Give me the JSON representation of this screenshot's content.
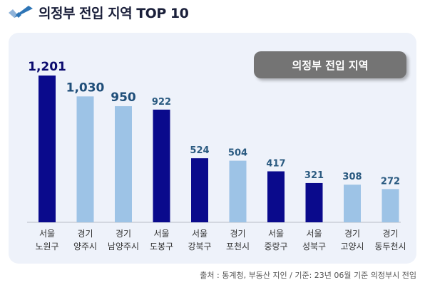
{
  "header": {
    "title": "의정부 전입 지역 TOP 10",
    "icon": "double-checkmark-icon"
  },
  "chart_data": {
    "type": "bar",
    "legend": "의정부 전입 지역",
    "categories": [
      [
        "서울",
        "노원구"
      ],
      [
        "경기",
        "양주시"
      ],
      [
        "경기",
        "남양주시"
      ],
      [
        "서울",
        "도봉구"
      ],
      [
        "서울",
        "강북구"
      ],
      [
        "경기",
        "포천시"
      ],
      [
        "서울",
        "중랑구"
      ],
      [
        "서울",
        "성북구"
      ],
      [
        "경기",
        "고양시"
      ],
      [
        "경기",
        "동두천시"
      ]
    ],
    "values": [
      1201,
      1030,
      950,
      922,
      524,
      504,
      417,
      321,
      308,
      272
    ],
    "value_labels": [
      "1,201",
      "1,030",
      "950",
      "922",
      "524",
      "504",
      "417",
      "321",
      "308",
      "272"
    ],
    "bar_colors": [
      "#0a0a8c",
      "#9dc3e6",
      "#9dc3e6",
      "#0a0a8c",
      "#0a0a8c",
      "#9dc3e6",
      "#0a0a8c",
      "#0a0a8c",
      "#9dc3e6",
      "#9dc3e6"
    ],
    "ylim": [
      0,
      1201
    ],
    "grid": false
  },
  "source": "출처 : 통계청, 부동산 지인 / 기준: 23년 06월 기준 의정부시 전입",
  "colors": {
    "seoul_bar": "#0a0a8c",
    "gyeonggi_bar": "#9dc3e6",
    "card_background": "#eef2fa",
    "legend_background": "#747474"
  }
}
